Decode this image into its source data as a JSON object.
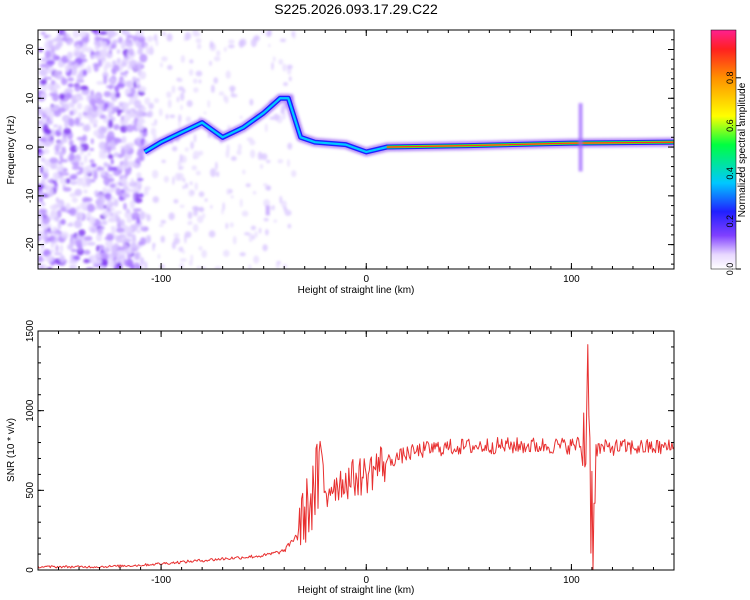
{
  "title": "S225.2026.093.17.29.C22",
  "chart_data": [
    {
      "type": "heatmap",
      "xlabel": "Height of straight line (km)",
      "ylabel": "Frequency (Hz)",
      "xlim": [
        -160,
        150
      ],
      "ylim": [
        -25,
        24
      ],
      "xticks": [
        -100,
        0,
        100
      ],
      "yticks": [
        -20,
        -10,
        0,
        10,
        20
      ],
      "colorbar": {
        "label": "Normalized spectral amplitude",
        "range": [
          0,
          1
        ],
        "ticks": [
          "0.0",
          "0.2",
          "0.4",
          "0.6",
          "0.8"
        ]
      },
      "ridge": [
        {
          "x": -108,
          "y": -1
        },
        {
          "x": -100,
          "y": 1
        },
        {
          "x": -90,
          "y": 3
        },
        {
          "x": -80,
          "y": 5
        },
        {
          "x": -70,
          "y": 2
        },
        {
          "x": -60,
          "y": 4
        },
        {
          "x": -50,
          "y": 7
        },
        {
          "x": -42,
          "y": 10
        },
        {
          "x": -38,
          "y": 10
        },
        {
          "x": -32,
          "y": 2
        },
        {
          "x": -25,
          "y": 1
        },
        {
          "x": -10,
          "y": 0.5
        },
        {
          "x": 0,
          "y": -1
        },
        {
          "x": 10,
          "y": 0
        },
        {
          "x": 50,
          "y": 0.3
        },
        {
          "x": 100,
          "y": 0.8
        },
        {
          "x": 150,
          "y": 1
        }
      ]
    },
    {
      "type": "line",
      "xlabel": "Height of straight line (km)",
      "ylabel": "SNR (10 * v/v)",
      "xlim": [
        -160,
        150
      ],
      "ylim": [
        0,
        1500
      ],
      "xticks": [
        -100,
        0,
        100
      ],
      "yticks": [
        0,
        500,
        1000,
        1500
      ],
      "color": "#e83030",
      "series": [
        {
          "x": [
            -160,
            -150,
            -140,
            -130,
            -120,
            -110,
            -100,
            -90,
            -80,
            -70,
            -60,
            -50,
            -40,
            -35,
            -30,
            -25,
            -22,
            -20,
            -15,
            -10,
            -5,
            0,
            5,
            10,
            20,
            30,
            40,
            60,
            80,
            100,
            104,
            106,
            108,
            110,
            112,
            120,
            130,
            140,
            150
          ],
          "y": [
            20,
            20,
            20,
            20,
            25,
            30,
            40,
            50,
            60,
            70,
            80,
            90,
            120,
            200,
            350,
            500,
            600,
            520,
            540,
            560,
            580,
            600,
            650,
            680,
            730,
            760,
            770,
            780,
            780,
            780,
            790,
            700,
            1300,
            300,
            760,
            770,
            770,
            770,
            770
          ]
        }
      ]
    }
  ]
}
